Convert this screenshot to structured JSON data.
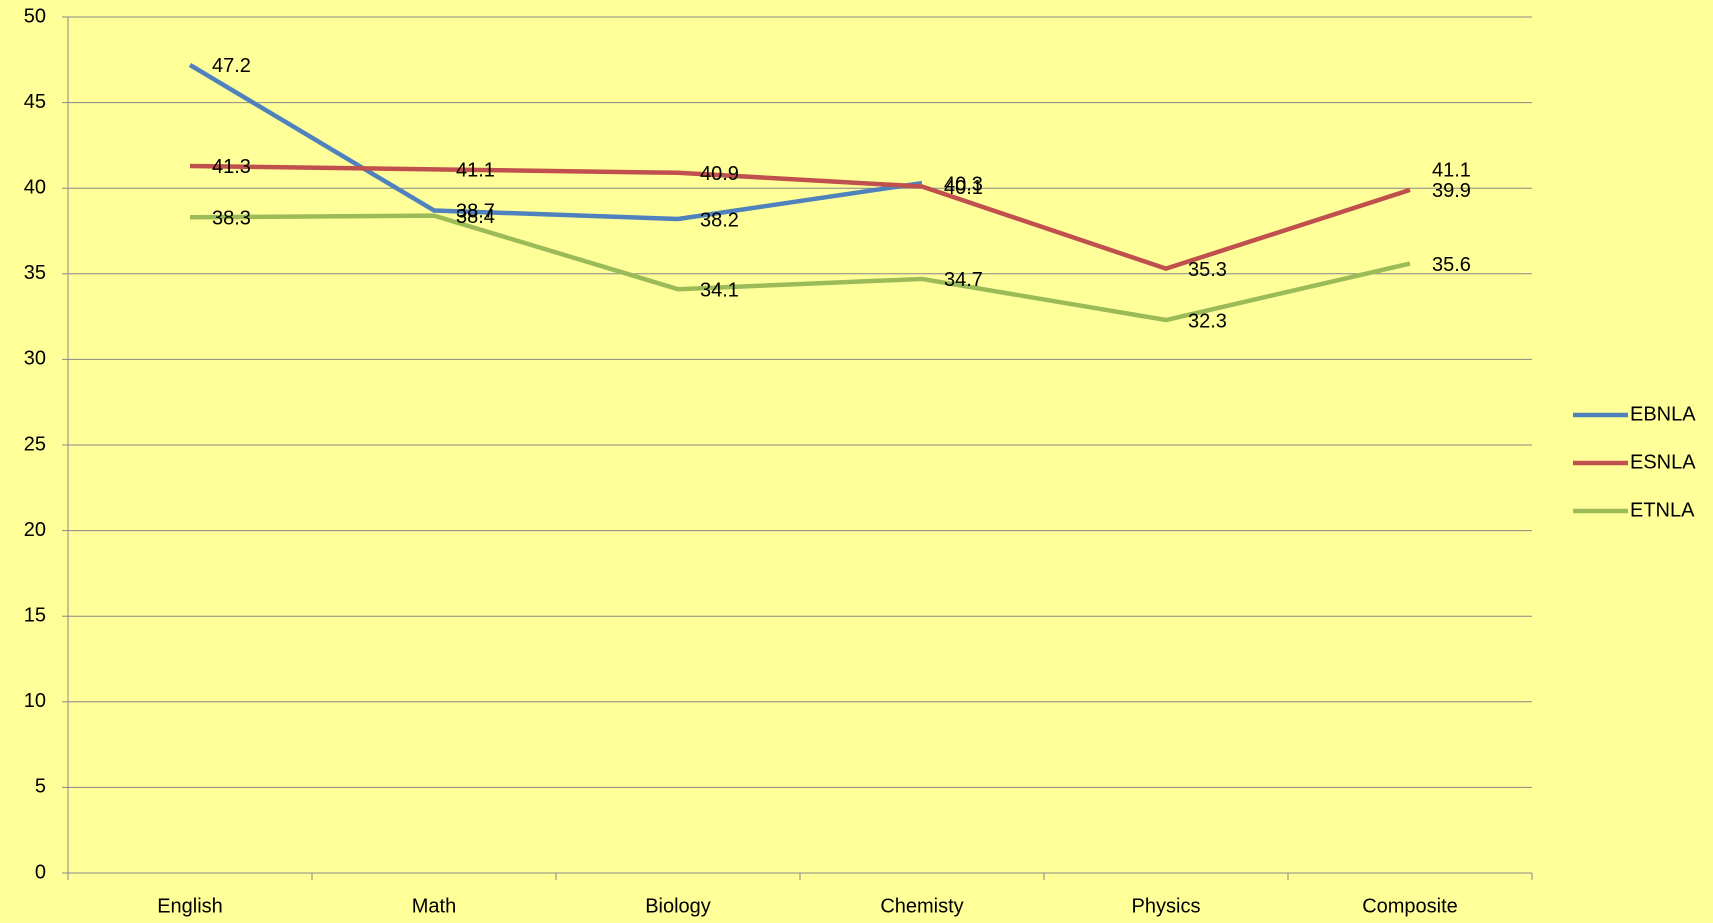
{
  "chart_data": {
    "type": "line",
    "categories": [
      "English",
      "Math",
      "Biology",
      "Chemisty",
      "Physics",
      "Composite"
    ],
    "series": [
      {
        "name": "EBNLA",
        "color": "#4f81bd",
        "values": [
          47.2,
          38.7,
          38.2,
          40.3,
          null,
          41.1
        ]
      },
      {
        "name": "ESNLA",
        "color": "#c0504d",
        "values": [
          41.3,
          41.1,
          40.9,
          40.1,
          35.3,
          39.9
        ]
      },
      {
        "name": "ETNLA",
        "color": "#9bbb59",
        "values": [
          38.3,
          38.4,
          34.1,
          34.7,
          32.3,
          35.6
        ]
      }
    ],
    "ylim": [
      0,
      50
    ],
    "yticks": [
      0,
      5,
      10,
      15,
      20,
      25,
      30,
      35,
      40,
      45,
      50
    ],
    "grid": true,
    "legend": "right",
    "data_labels": true
  }
}
